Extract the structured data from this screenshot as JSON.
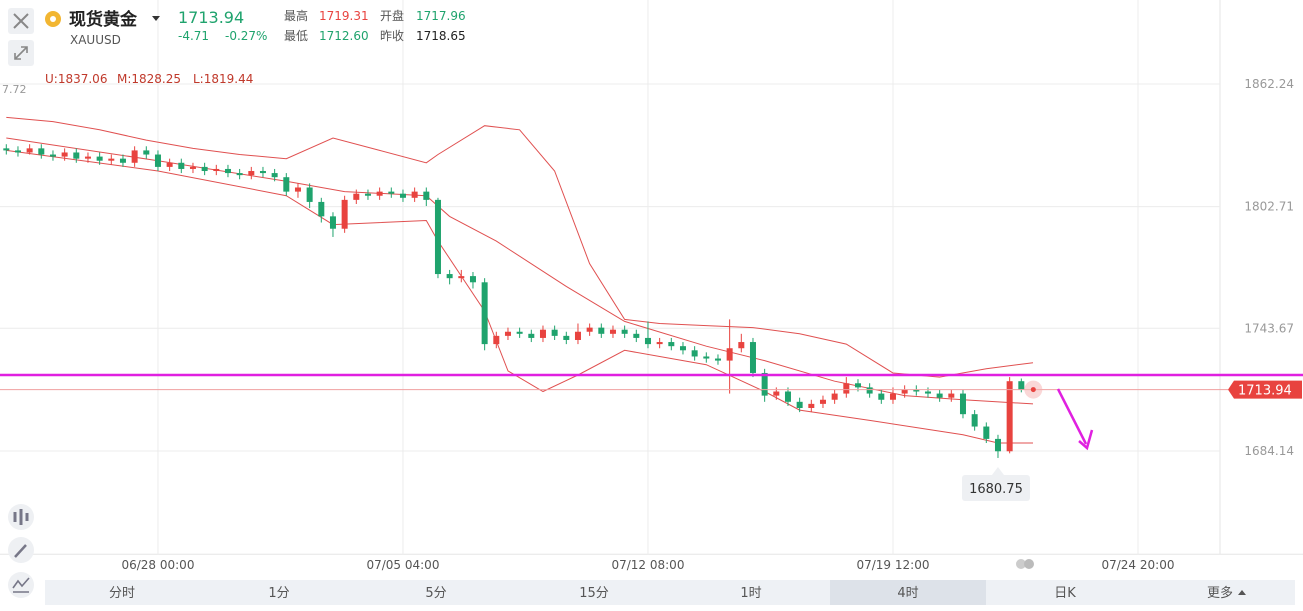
{
  "header": {
    "title": "现货黄金",
    "symbol": "XAUUSD",
    "price": "1713.94",
    "change": "-4.71",
    "change_pct": "-0.27%",
    "stats": [
      {
        "label": "最高",
        "value": "1719.31"
      },
      {
        "label": "开盘",
        "value": "1717.96"
      },
      {
        "label": "最低",
        "value": "1712.60"
      },
      {
        "label": "昨收",
        "value": "1718.65"
      }
    ]
  },
  "indicator": {
    "upper": "U:1837.06",
    "middle": "M:1828.25",
    "lower": "L:1819.44"
  },
  "axis_fragment": "7.72",
  "tabs": [
    "分时",
    "1分",
    "5分",
    "15分",
    "1时",
    "4时",
    "日K",
    "更多"
  ],
  "active_tab": 5,
  "chart_data": {
    "type": "candlestick",
    "open": [
      1831,
      1830,
      1829,
      1831,
      1828,
      1827,
      1829,
      1826,
      1827,
      1825,
      1826,
      1824,
      1830,
      1828,
      1822,
      1824,
      1821,
      1822,
      1820,
      1821,
      1819,
      1818,
      1820,
      1819,
      1817,
      1810,
      1812,
      1805,
      1798,
      1792,
      1806,
      1809,
      1808,
      1810,
      1809,
      1807,
      1810,
      1806,
      1770,
      1768,
      1769,
      1766,
      1736,
      1740,
      1742,
      1741,
      1739,
      1743,
      1740,
      1738,
      1742,
      1744,
      1741,
      1743,
      1741,
      1739,
      1736,
      1737,
      1735,
      1733,
      1730,
      1729,
      1728,
      1734,
      1737,
      1722,
      1711,
      1713,
      1708,
      1705,
      1707,
      1709,
      1712,
      1717,
      1715,
      1712,
      1709,
      1712,
      1714,
      1713,
      1712,
      1710,
      1712,
      1702,
      1696,
      1690,
      1684,
      1718
    ],
    "high": [
      1833,
      1832,
      1833,
      1833,
      1830,
      1831,
      1831,
      1829,
      1829,
      1828,
      1828,
      1832,
      1832,
      1830,
      1826,
      1826,
      1824,
      1824,
      1823,
      1823,
      1821,
      1822,
      1822,
      1821,
      1819,
      1814,
      1814,
      1807,
      1800,
      1808,
      1811,
      1811,
      1812,
      1812,
      1811,
      1812,
      1812,
      1807,
      1772,
      1772,
      1771,
      1768,
      1742,
      1744,
      1744,
      1743,
      1745,
      1745,
      1742,
      1746,
      1746,
      1746,
      1745,
      1745,
      1743,
      1747,
      1739,
      1739,
      1737,
      1735,
      1732,
      1731,
      1748,
      1741,
      1739,
      1724,
      1715,
      1715,
      1710,
      1709,
      1711,
      1714,
      1720,
      1719,
      1717,
      1714,
      1715,
      1716,
      1716,
      1715,
      1714,
      1714,
      1714,
      1704,
      1698,
      1692,
      1720,
      1719.31
    ],
    "low": [
      1828,
      1827,
      1828,
      1826,
      1825,
      1825,
      1824,
      1824,
      1823,
      1823,
      1822,
      1822,
      1826,
      1820,
      1820,
      1819,
      1819,
      1818,
      1818,
      1817,
      1816,
      1816,
      1817,
      1815,
      1808,
      1807,
      1802,
      1795,
      1788,
      1790,
      1804,
      1806,
      1806,
      1807,
      1805,
      1805,
      1803,
      1768,
      1765,
      1766,
      1763,
      1733,
      1734,
      1738,
      1739,
      1737,
      1737,
      1738,
      1736,
      1736,
      1740,
      1739,
      1739,
      1739,
      1737,
      1734,
      1734,
      1733,
      1731,
      1728,
      1727,
      1726,
      1712,
      1732,
      1720,
      1708,
      1709,
      1706,
      1703,
      1703,
      1705,
      1707,
      1710,
      1713,
      1710,
      1707,
      1707,
      1710,
      1711,
      1710,
      1708,
      1708,
      1700,
      1694,
      1688,
      1680.75,
      1683,
      1712.6
    ],
    "close": [
      1830,
      1829,
      1831,
      1828,
      1827,
      1829,
      1826,
      1827,
      1825,
      1826,
      1824,
      1830,
      1828,
      1822,
      1824,
      1821,
      1822,
      1820,
      1821,
      1819,
      1818,
      1820,
      1819,
      1817,
      1810,
      1812,
      1805,
      1798,
      1792,
      1806,
      1809,
      1808,
      1810,
      1809,
      1807,
      1810,
      1806,
      1770,
      1768,
      1769,
      1766,
      1736,
      1740,
      1742,
      1741,
      1739,
      1743,
      1740,
      1738,
      1742,
      1744,
      1741,
      1743,
      1741,
      1739,
      1736,
      1737,
      1735,
      1733,
      1730,
      1729,
      1728,
      1734,
      1737,
      1722,
      1711,
      1713,
      1708,
      1705,
      1707,
      1709,
      1712,
      1717,
      1715,
      1712,
      1709,
      1712,
      1714,
      1713,
      1712,
      1710,
      1712,
      1702,
      1696,
      1690,
      1684,
      1718,
      1713.94
    ],
    "up_color": "#e8433f",
    "down_color": "#1fa36d",
    "bands": [
      {
        "color": "#e05050",
        "x": [
          0,
          4,
          8,
          12,
          16,
          20,
          24,
          28,
          32,
          36,
          37,
          41,
          44,
          47,
          50,
          53,
          56,
          60,
          64,
          68,
          72,
          76,
          80,
          84,
          88
        ],
        "values": [
          1846,
          1844,
          1840,
          1835,
          1831,
          1828,
          1826,
          1836,
          1830,
          1824,
          1828,
          1842,
          1840,
          1820,
          1775,
          1748,
          1746,
          1745,
          1744,
          1741,
          1736,
          1722,
          1720,
          1724,
          1727
        ]
      },
      {
        "color": "#e05050",
        "x": [
          0,
          13,
          24,
          29,
          36,
          38,
          42,
          48,
          53,
          60,
          65,
          71,
          77,
          82,
          88
        ],
        "values": [
          1836,
          1825,
          1815,
          1810,
          1808,
          1798,
          1786,
          1764,
          1747,
          1735,
          1728,
          1718,
          1711,
          1709,
          1707
        ]
      },
      {
        "color": "#e05050",
        "x": [
          0,
          13,
          24,
          28,
          36,
          37,
          41,
          43,
          46,
          49,
          53,
          60,
          65,
          68,
          74,
          82,
          85,
          88
        ],
        "values": [
          1830,
          1820,
          1808,
          1794,
          1796,
          1786,
          1752,
          1723,
          1713,
          1721,
          1733,
          1726,
          1713,
          1704,
          1699,
          1692,
          1688,
          1688
        ]
      }
    ],
    "ylim": [
      1634,
      1878
    ],
    "yticks": [
      1862.24,
      1802.71,
      1743.67,
      1684.14
    ],
    "xlim": [
      -0.54,
      104.03
    ],
    "xticks": [
      {
        "value": 13,
        "label": "06/28 00:00"
      },
      {
        "value": 34,
        "label": "07/05 04:00"
      },
      {
        "value": 55,
        "label": "07/12 08:00"
      },
      {
        "value": 76,
        "label": "07/19 12:00"
      },
      {
        "value": 97,
        "label": "07/24 20:00"
      }
    ],
    "grid": true,
    "last_price": 1713.94,
    "low_marker": {
      "index": 85,
      "value": 1680.75
    },
    "hline": {
      "value": 1721,
      "color": "#e020e0"
    }
  }
}
